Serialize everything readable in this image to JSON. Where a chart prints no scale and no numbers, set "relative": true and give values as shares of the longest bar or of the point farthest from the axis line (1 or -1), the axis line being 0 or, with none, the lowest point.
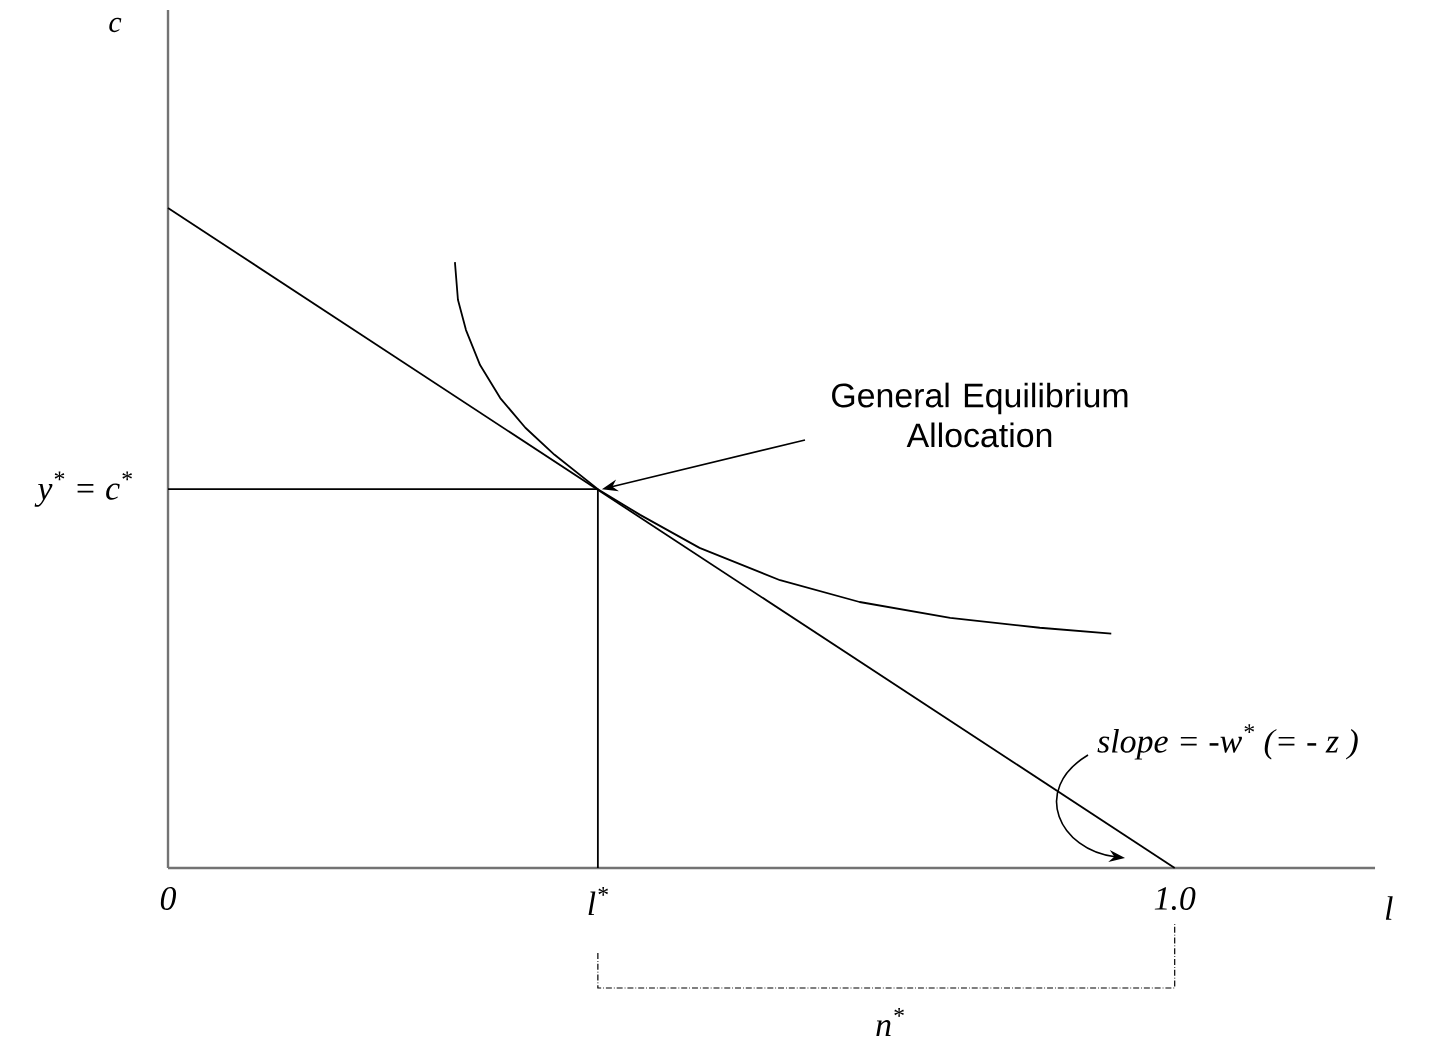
{
  "chart_data": {
    "type": "line",
    "relative": true,
    "xlabel": "l",
    "xlim": [
      0,
      1.199
    ],
    "xticks": [
      0,
      {
        "value": 0.427,
        "label": "l$^{*}$"
      },
      {
        "value": 1.0,
        "label": "1.0"
      }
    ],
    "series": [
      {
        "color": "#000000",
        "x": [
          0,
          1.0
        ],
        "values": [
          1,
          0
        ]
      },
      {
        "color": "#000000",
        "x": [
          0.285,
          0.288,
          0.296,
          0.31,
          0.33,
          0.355,
          0.384,
          0.427,
          0.469,
          0.528,
          0.608,
          0.687,
          0.777,
          0.866,
          0.937
        ],
        "values": [
          0.918,
          0.861,
          0.815,
          0.762,
          0.712,
          0.667,
          0.626,
          0.574,
          0.535,
          0.485,
          0.436,
          0.403,
          0.379,
          0.364,
          0.355
        ]
      },
      {
        "color": "#000000",
        "x": [
          0,
          0.427,
          0.427
        ],
        "values": [
          0.574,
          0.574,
          0
        ]
      }
    ],
    "annotations": [
      "General Equilibrium Allocation",
      "slope = -w$^{*}$ (= - z )",
      {
        "text": "y$^{*}$ = c$^{*}$",
        "x": 0,
        "y": 0.574
      },
      "c",
      "n$^{*}$"
    ]
  }
}
